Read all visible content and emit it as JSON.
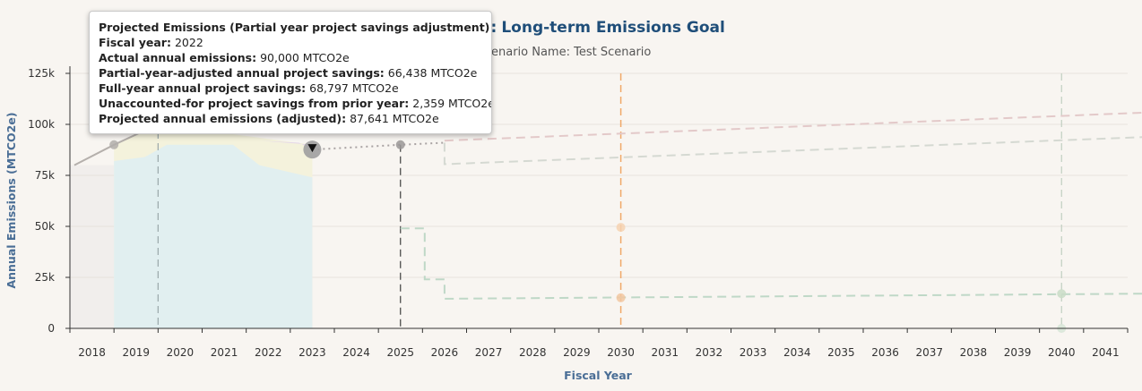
{
  "chart_data": {
    "type": "line",
    "title": "Long-term Emissions Goal",
    "title_prefix_visible": "e:",
    "subtitle": "enario Name: Test Scenario",
    "xlabel": "Fiscal Year",
    "ylabel": "Annual Emissions (MTCO2e)",
    "ylim": [
      0,
      125000
    ],
    "yticks": [
      0,
      25000,
      50000,
      75000,
      100000,
      125000
    ],
    "ytick_labels": [
      "0",
      "25k",
      "50k",
      "75k",
      "100k",
      "125k"
    ],
    "categories": [
      "2018",
      "2019",
      "2020",
      "2021",
      "2022",
      "2023",
      "2024",
      "2025",
      "2026",
      "2027",
      "2028",
      "2029",
      "2030",
      "2031",
      "2032",
      "2033",
      "2034",
      "2035",
      "2036",
      "2037",
      "2038",
      "2039",
      "2040",
      "2041"
    ],
    "grid": true,
    "vertical_markers": [
      2019.5,
      2025,
      2030,
      2040
    ],
    "series": [
      {
        "kind": "line",
        "color": "#b5b0ac",
        "dash": "solid",
        "points": [
          [
            2017.6,
            80000
          ],
          [
            2018.5,
            90000
          ],
          [
            2019.5,
            100000
          ]
        ]
      },
      {
        "kind": "dotted",
        "color": "#a9a3a3",
        "dash": "dotted",
        "points": [
          [
            2023,
            87641
          ],
          [
            2025,
            90000
          ],
          [
            2026,
            91000
          ]
        ]
      },
      {
        "kind": "dashed",
        "color": "#e3c9c9",
        "dash": "dashed",
        "points": [
          [
            2026,
            92000
          ],
          [
            2041.9,
            105800
          ]
        ]
      },
      {
        "kind": "dashed",
        "color": "#d5d9d2",
        "dash": "dashed",
        "points": [
          [
            2026,
            91000
          ],
          [
            2026,
            80500
          ],
          [
            2041.9,
            93800
          ]
        ]
      },
      {
        "kind": "dashed",
        "color": "#bfd8c7",
        "dash": "dashed",
        "points": [
          [
            2025,
            49000
          ],
          [
            2025.55,
            49000
          ],
          [
            2025.55,
            24000
          ],
          [
            2026,
            24000
          ],
          [
            2026,
            14500
          ],
          [
            2041.9,
            17000
          ]
        ]
      }
    ],
    "points": [
      {
        "x": 2018.5,
        "y": 90000,
        "color": "#b2aeaa"
      },
      {
        "x": 2025,
        "y": 90000,
        "color": "#9a9696"
      },
      {
        "x": 2030,
        "y": 49500,
        "color": "#f6d2b2"
      },
      {
        "x": 2030,
        "y": 15000,
        "color": "#f2c7a1"
      },
      {
        "x": 2040,
        "y": 17000,
        "color": "#c9dcc7"
      },
      {
        "x": 2040,
        "y": 0,
        "color": "#d7e5d7"
      }
    ],
    "highlight_point": {
      "x": 2023,
      "y": 87641
    },
    "tooltip": {
      "title": "Projected Emissions (Partial year project savings adjustment)",
      "rows": [
        {
          "label": "Fiscal year:",
          "value": "2022"
        },
        {
          "label": "Actual annual emissions:",
          "value": "90,000 MTCO2e"
        },
        {
          "label": "Partial-year-adjusted annual project savings:",
          "value": "66,438 MTCO2e"
        },
        {
          "label": "Full-year annual project savings:",
          "value": "68,797 MTCO2e"
        },
        {
          "label": "Unaccounted-for project savings from prior year:",
          "value": "2,359 MTCO2e"
        },
        {
          "label": "Projected annual emissions (adjusted):",
          "value": "87,641 MTCO2e"
        }
      ]
    }
  }
}
